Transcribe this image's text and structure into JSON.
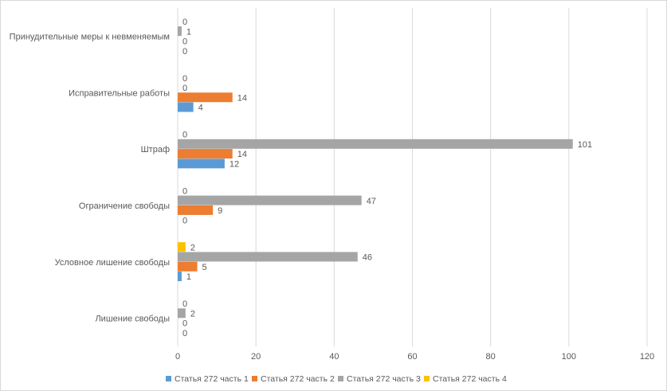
{
  "chart_data": {
    "type": "bar",
    "orientation": "horizontal",
    "title": "",
    "xlabel": "",
    "ylabel": "",
    "xlim": [
      0,
      120
    ],
    "x_ticks": [
      "0",
      "20",
      "40",
      "60",
      "80",
      "100",
      "120"
    ],
    "grid": true,
    "legend_position": "bottom",
    "categories": [
      "Лишение свободы",
      "Условное лишение свободы",
      "Ограничение свободы",
      "Штраф",
      "Исправительные работы",
      "Принудительные меры к невменяемым"
    ],
    "series": [
      {
        "name": "Статья 272 часть 1",
        "color": "#5B9BD5",
        "values": [
          0,
          1,
          0,
          12,
          4,
          0
        ]
      },
      {
        "name": "Статья 272 часть 2",
        "color": "#ED7D31",
        "values": [
          0,
          5,
          9,
          14,
          14,
          0
        ]
      },
      {
        "name": "Статья 272 часть 3",
        "color": "#A5A5A5",
        "values": [
          2,
          46,
          47,
          101,
          0,
          1
        ]
      },
      {
        "name": "Статья 272 часть 4",
        "color": "#FFC000",
        "values": [
          0,
          2,
          0,
          0,
          0,
          0
        ]
      }
    ]
  }
}
